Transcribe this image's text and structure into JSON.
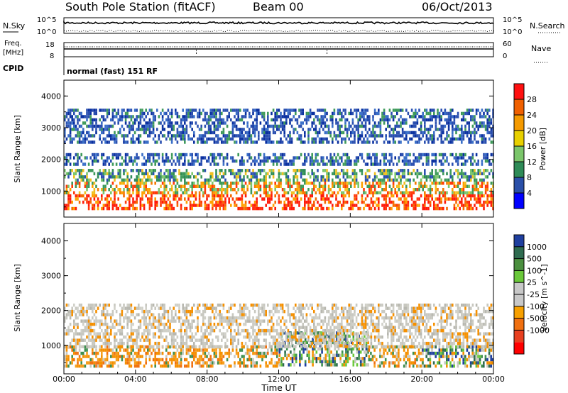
{
  "header": {
    "title": "South Pole Station (fitACF)",
    "beam": "Beam 00",
    "date": "06/Oct/2013"
  },
  "top_panels": {
    "nsky_label": "N.Sky",
    "nsky_ticks": [
      "10^5",
      "10^0"
    ],
    "nsearch_label": "N.Search",
    "nsearch_ticks": [
      "10^5",
      "10^0"
    ],
    "freq_label_1": "Freq.",
    "freq_label_2": "[MHz]",
    "freq_ticks": [
      "18",
      "8"
    ],
    "nave_label": "Nave",
    "nave_ticks": [
      "60",
      "0"
    ],
    "cpid_label": "CPID",
    "cpid_text": "normal (fast) 151 RF"
  },
  "x_axis": {
    "label": "Time UT",
    "ticks": [
      "00:00",
      "04:00",
      "08:00",
      "12:00",
      "16:00",
      "20:00",
      "00:00"
    ]
  },
  "chart_data": [
    {
      "type": "heatmap",
      "name": "power",
      "ylabel": "Slant Range [km]",
      "yticks": [
        "1000",
        "2000",
        "3000",
        "4000"
      ],
      "ylim": [
        180,
        4500
      ],
      "xlim_hours": [
        0,
        24
      ],
      "colorbar_label": "Power [dB]",
      "colorbar_ticks": [
        "4",
        "8",
        "12",
        "16",
        "20",
        "24",
        "28"
      ],
      "colorbar_colors": [
        "#0000ff",
        "#2a4fa8",
        "#2e8b57",
        "#7bc66b",
        "#e8d000",
        "#f59a00",
        "#f06000",
        "#ff1010"
      ],
      "bands": [
        {
          "range_km": [
            400,
            900
          ],
          "hours": [
            0,
            24
          ],
          "dominant": "red"
        },
        {
          "range_km": [
            900,
            1300
          ],
          "hours": [
            0,
            24
          ],
          "dominant": "orange"
        },
        {
          "range_km": [
            1300,
            1700
          ],
          "hours": [
            0,
            24
          ],
          "dominant": "green"
        },
        {
          "range_km": [
            1800,
            2200
          ],
          "hours": [
            0,
            24
          ],
          "dominant": "blue"
        },
        {
          "range_km": [
            2500,
            3600
          ],
          "hours": [
            0,
            24
          ],
          "dominant": "blue"
        }
      ]
    },
    {
      "type": "heatmap",
      "name": "velocity",
      "ylabel": "Slant Range [km]",
      "yticks": [
        "1000",
        "2000",
        "3000",
        "4000"
      ],
      "ylim": [
        180,
        4500
      ],
      "xlim_hours": [
        0,
        24
      ],
      "colorbar_label": "Velocity [m s^-1]",
      "colorbar_ticks": [
        "1000",
        "500",
        "100",
        "25",
        "-25",
        "-100",
        "-500",
        "-1000"
      ],
      "colorbar_colors": [
        "#1f3f9f",
        "#2e6b4f",
        "#4b8f3f",
        "#6ac83a",
        "#c8c8c8",
        "#c8c8c8",
        "#f7a000",
        "#f07010",
        "#e84020",
        "#ff0000"
      ],
      "bands": [
        {
          "range_km": [
            400,
            1000
          ],
          "hours": [
            0,
            12
          ],
          "dominant": "orange"
        },
        {
          "range_km": [
            400,
            1400
          ],
          "hours": [
            12,
            17
          ],
          "dominant": "green"
        },
        {
          "range_km": [
            400,
            1000
          ],
          "hours": [
            17,
            20
          ],
          "dominant": "orange"
        },
        {
          "range_km": [
            400,
            1000
          ],
          "hours": [
            20,
            24
          ],
          "dominant": "green"
        },
        {
          "range_km": [
            1000,
            2200
          ],
          "hours": [
            0,
            24
          ],
          "dominant": "grey"
        }
      ]
    }
  ]
}
